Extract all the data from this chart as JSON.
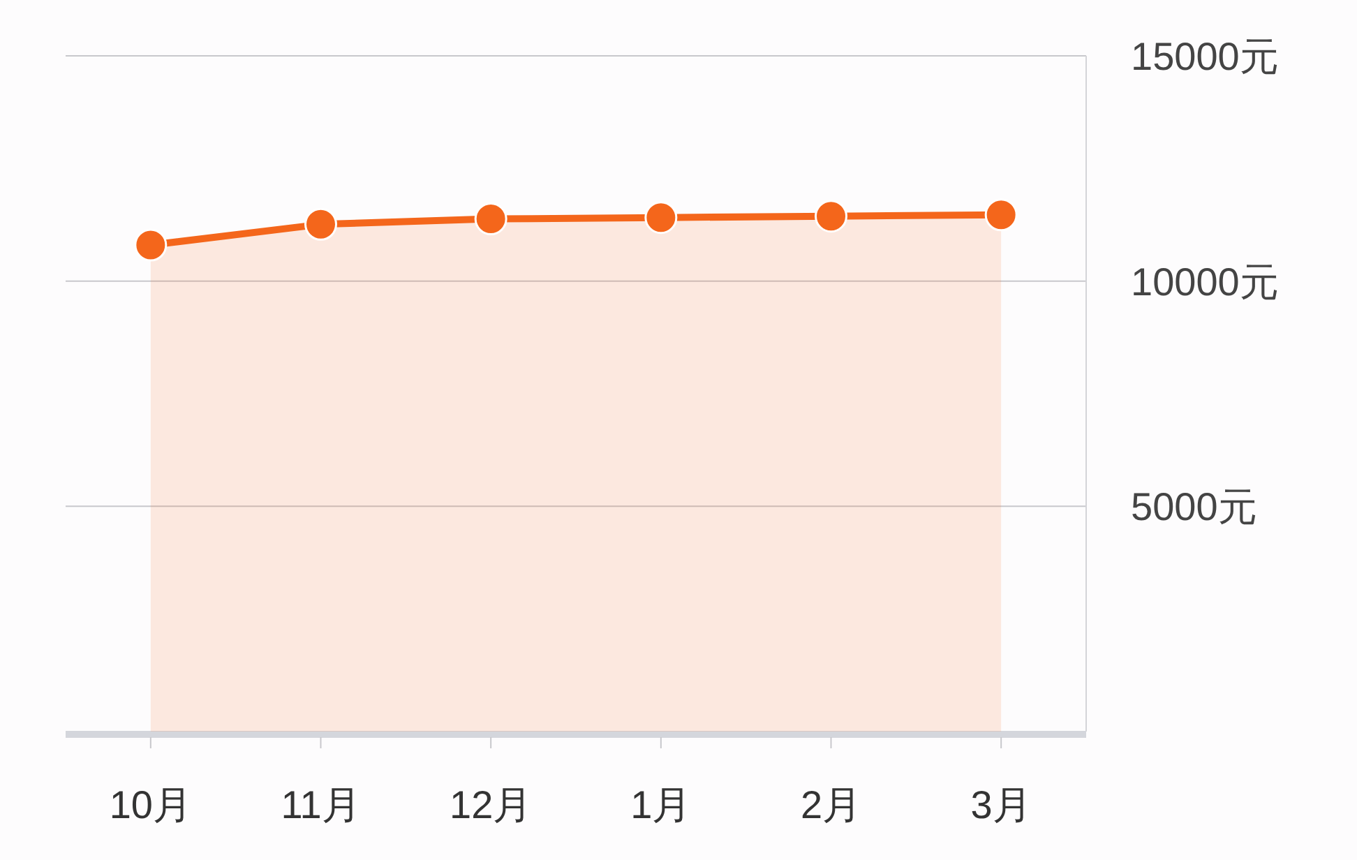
{
  "chart_data": {
    "type": "area",
    "categories": [
      "10月",
      "11月",
      "12月",
      "1月",
      "2月",
      "3月"
    ],
    "series": [
      {
        "color": "#f4661b",
        "values": [
          10800,
          11260,
          11380,
          11410,
          11440,
          11470
        ]
      }
    ],
    "ylim": [
      0,
      15000
    ],
    "yticks": [
      {
        "value": 5000,
        "label": "5000元"
      },
      {
        "value": 10000,
        "label": "10000元"
      },
      {
        "value": 15000,
        "label": "15000元"
      }
    ],
    "grid": "y",
    "marker": "circle"
  }
}
